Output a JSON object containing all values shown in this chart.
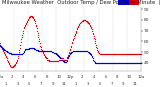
{
  "bg_color": "#ffffff",
  "plot_bg": "#ffffff",
  "temp_color": "#dd0000",
  "dew_color": "#0000cc",
  "legend_blue_color": "#0000cc",
  "legend_red_color": "#dd0000",
  "ylim": [
    32,
    92
  ],
  "yticks": [
    40,
    50,
    60,
    70,
    80,
    90
  ],
  "ytick_labels": [
    "40",
    "50",
    "60",
    "70",
    "80",
    "90"
  ],
  "grid_color": "#aaaaaa",
  "title_color": "#222222",
  "tick_color": "#333333",
  "spine_color": "#888888",
  "n_gridlines": 10,
  "title_fontsize": 3.8,
  "tick_fontsize": 3.2,
  "dot_size": 0.8,
  "temp_data": [
    58,
    57,
    56,
    55,
    54,
    53,
    52,
    51,
    50,
    49,
    48,
    47,
    46,
    45,
    44,
    43,
    42,
    41,
    40,
    39,
    38,
    37,
    36,
    36,
    36,
    36,
    36,
    37,
    37,
    38,
    38,
    39,
    40,
    41,
    42,
    43,
    44,
    46,
    48,
    50,
    52,
    54,
    57,
    59,
    62,
    64,
    66,
    68,
    70,
    72,
    73,
    74,
    75,
    76,
    77,
    78,
    79,
    80,
    81,
    82,
    83,
    83,
    84,
    84,
    84,
    84,
    83,
    83,
    82,
    81,
    80,
    79,
    77,
    75,
    74,
    72,
    70,
    68,
    66,
    64,
    62,
    60,
    58,
    56,
    55,
    53,
    52,
    51,
    50,
    49,
    48,
    47,
    46,
    45,
    45,
    44,
    44,
    43,
    43,
    43,
    43,
    42,
    42,
    42,
    42,
    42,
    42,
    42,
    42,
    42,
    42,
    42,
    42,
    42,
    42,
    42,
    42,
    42,
    42,
    42,
    42,
    43,
    43,
    43,
    44,
    44,
    44,
    44,
    44,
    44,
    43,
    43,
    43,
    43,
    43,
    43,
    43,
    44,
    45,
    46,
    47,
    49,
    50,
    52,
    53,
    55,
    56,
    58,
    59,
    61,
    62,
    63,
    65,
    66,
    67,
    68,
    69,
    70,
    71,
    72,
    73,
    74,
    75,
    76,
    77,
    77,
    78,
    78,
    79,
    79,
    79,
    80,
    80,
    80,
    80,
    80,
    79,
    79,
    79,
    78,
    78,
    77,
    77,
    76,
    75,
    74,
    73,
    72,
    71,
    70,
    68,
    67,
    65,
    63,
    62,
    60,
    58,
    57,
    55,
    54,
    52,
    51,
    50,
    49,
    49,
    48,
    48,
    48,
    48,
    48,
    48,
    48,
    48,
    48,
    48,
    48,
    48,
    48,
    48,
    48,
    48,
    48,
    48,
    48,
    48,
    48,
    48,
    48,
    48,
    48,
    48,
    48,
    48,
    48,
    48,
    48,
    48,
    48,
    48,
    48,
    48,
    48,
    48,
    48,
    48,
    48,
    48,
    48,
    48,
    48,
    48,
    48,
    48,
    48,
    48,
    48,
    48,
    48,
    48,
    48,
    48,
    48,
    48,
    48,
    48,
    48,
    48,
    48,
    48,
    48,
    48,
    48,
    48,
    48,
    48,
    48,
    48,
    48,
    48,
    48,
    48,
    48,
    48,
    48,
    48,
    48,
    48,
    48,
    48,
    48
  ],
  "dew_data": [
    57,
    56,
    56,
    55,
    55,
    54,
    54,
    53,
    53,
    52,
    52,
    52,
    51,
    51,
    51,
    50,
    50,
    50,
    49,
    49,
    49,
    49,
    49,
    48,
    48,
    48,
    48,
    48,
    48,
    48,
    48,
    48,
    48,
    48,
    48,
    48,
    48,
    48,
    48,
    48,
    48,
    48,
    48,
    48,
    48,
    48,
    48,
    49,
    49,
    50,
    51,
    52,
    53,
    53,
    53,
    53,
    53,
    53,
    53,
    53,
    54,
    54,
    54,
    54,
    54,
    54,
    54,
    54,
    54,
    54,
    53,
    53,
    53,
    52,
    52,
    52,
    52,
    52,
    52,
    51,
    51,
    51,
    51,
    51,
    51,
    51,
    51,
    51,
    51,
    51,
    51,
    51,
    51,
    51,
    51,
    51,
    51,
    51,
    51,
    51,
    51,
    51,
    51,
    51,
    51,
    51,
    50,
    50,
    50,
    50,
    49,
    49,
    49,
    49,
    49,
    48,
    48,
    48,
    47,
    47,
    46,
    46,
    45,
    45,
    44,
    44,
    43,
    43,
    43,
    42,
    42,
    42,
    41,
    41,
    41,
    41,
    41,
    42,
    43,
    44,
    45,
    46,
    47,
    48,
    49,
    49,
    50,
    50,
    50,
    51,
    51,
    51,
    51,
    51,
    51,
    51,
    51,
    51,
    51,
    51,
    51,
    51,
    51,
    51,
    51,
    51,
    51,
    51,
    51,
    51,
    51,
    51,
    51,
    51,
    51,
    51,
    51,
    51,
    51,
    51,
    50,
    50,
    50,
    49,
    49,
    48,
    48,
    47,
    46,
    45,
    44,
    43,
    42,
    42,
    41,
    41,
    40,
    40,
    40,
    40,
    40,
    40,
    40,
    40,
    40,
    40,
    40,
    40,
    40,
    40,
    40,
    40,
    40,
    40,
    40,
    40,
    40,
    40,
    40,
    40,
    40,
    40,
    40,
    40,
    40,
    40,
    40,
    40,
    40,
    40,
    40,
    40,
    40,
    40,
    40,
    40,
    40,
    40,
    40,
    40,
    40,
    40,
    40,
    40,
    40,
    40,
    40,
    40,
    40,
    40,
    40,
    40,
    40,
    40,
    40,
    40,
    40,
    40,
    40,
    40,
    40,
    40,
    40,
    40,
    40,
    40,
    40,
    40,
    40,
    40,
    40,
    40,
    40,
    40,
    40,
    40,
    40,
    40,
    40,
    40,
    40,
    40,
    40,
    40,
    40,
    40,
    40,
    40,
    40,
    40
  ],
  "n_points": 290,
  "time_labels_row1": [
    "12a",
    "",
    "2",
    "",
    "4",
    "",
    "6",
    "",
    "8",
    "",
    "10",
    "",
    "12p",
    "",
    "2",
    "",
    "4",
    "",
    "6",
    "",
    "8",
    "",
    "10",
    "",
    "12a"
  ],
  "time_labels_row2": [
    "",
    "1",
    "",
    "3",
    "",
    "5",
    "",
    "7",
    "",
    "9",
    "",
    "11",
    "",
    "1",
    "",
    "3",
    "",
    "5",
    "",
    "7",
    "",
    "9",
    "",
    "11",
    ""
  ]
}
